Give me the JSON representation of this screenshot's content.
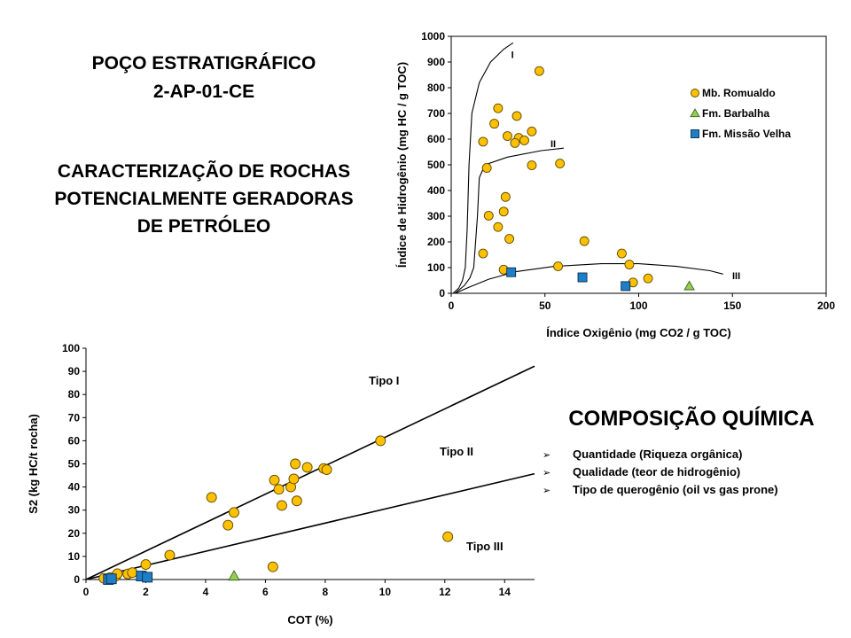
{
  "titles": {
    "well_line1": "POÇO ESTRATIGRÁFICO",
    "well_line2": "2-AP-01-CE",
    "charac_line1": "CARACTERIZAÇÃO DE ROCHAS",
    "charac_line2": "POTENCIALMENTE GERADORAS",
    "charac_line3": "DE PETRÓLEO",
    "composition": "COMPOSIÇÃO QUÍMICA"
  },
  "bullets": [
    "Quantidade (Riqueza orgânica)",
    "Qualidade (teor de hidrogênio)",
    "Tipo de querogênio (oil vs gas prone)"
  ],
  "bullet_symbol": "➢",
  "colors": {
    "mb_romualdo": "#FFC000",
    "fm_barbalha": "#92D050",
    "fm_missao_velha": "#1F7FC4",
    "marker_edge": "#5A4A00",
    "axis": "#000000"
  },
  "chart_data": [
    {
      "type": "scatter",
      "title": "",
      "xlabel": "Índice Oxigênio (mg CO2 / g TOC)",
      "ylabel": "Índice de Hidrogênio (mg HC / g TOC)",
      "xlim": [
        0,
        200
      ],
      "ylim": [
        0,
        1000
      ],
      "xticks": [
        0,
        50,
        100,
        150,
        200
      ],
      "yticks": [
        0,
        100,
        200,
        300,
        400,
        500,
        600,
        700,
        800,
        900,
        1000
      ],
      "grid": false,
      "legend_position": "top-right",
      "series": [
        {
          "name": "Mb. Romualdo",
          "marker": "circle",
          "points": [
            [
              47,
              865
            ],
            [
              25,
              720
            ],
            [
              35,
              690
            ],
            [
              23,
              660
            ],
            [
              43,
              630
            ],
            [
              30,
              612
            ],
            [
              36,
              605
            ],
            [
              39,
              595
            ],
            [
              17,
              590
            ],
            [
              34,
              585
            ],
            [
              43,
              498
            ],
            [
              58,
              505
            ],
            [
              19,
              488
            ],
            [
              29,
              375
            ],
            [
              28,
              318
            ],
            [
              20,
              302
            ],
            [
              25,
              258
            ],
            [
              31,
              212
            ],
            [
              71,
              203
            ],
            [
              91,
              155
            ],
            [
              17,
              155
            ],
            [
              95,
              112
            ],
            [
              57,
              105
            ],
            [
              28,
              92
            ],
            [
              105,
              58
            ],
            [
              97,
              42
            ]
          ]
        },
        {
          "name": "Fm. Barbalha",
          "marker": "triangle",
          "points": [
            [
              127,
              28
            ]
          ]
        },
        {
          "name": "Fm. Missão Velha",
          "marker": "square",
          "points": [
            [
              32,
              82
            ],
            [
              70,
              62
            ],
            [
              93,
              28
            ]
          ]
        }
      ],
      "curve_labels": [
        "I",
        "II",
        "III"
      ]
    },
    {
      "type": "scatter",
      "title": "",
      "xlabel": "COT (%)",
      "ylabel": "S2 (kg HC/t rocha)",
      "xlim": [
        0,
        15
      ],
      "ylim": [
        0,
        100
      ],
      "xticks": [
        0,
        2,
        4,
        6,
        8,
        10,
        12,
        14
      ],
      "yticks": [
        0,
        10,
        20,
        30,
        40,
        50,
        60,
        70,
        80,
        90,
        100
      ],
      "grid": false,
      "lines": [
        {
          "name": "Tipo I",
          "slope": 6.15
        },
        {
          "name": "Tipo II",
          "slope": 3.05
        }
      ],
      "region_labels": [
        "Tipo I",
        "Tipo II",
        "Tipo III"
      ],
      "series": [
        {
          "name": "Mb. Romualdo",
          "marker": "circle",
          "points": [
            [
              0.6,
              0.5
            ],
            [
              0.8,
              0.8
            ],
            [
              1.0,
              1.5
            ],
            [
              1.05,
              2.5
            ],
            [
              1.4,
              2.4
            ],
            [
              1.55,
              3.0
            ],
            [
              2.0,
              6.5
            ],
            [
              2.8,
              10.5
            ],
            [
              4.2,
              35.5
            ],
            [
              4.75,
              23.5
            ],
            [
              4.95,
              29.0
            ],
            [
              6.3,
              43.0
            ],
            [
              6.45,
              39.0
            ],
            [
              6.55,
              32.0
            ],
            [
              6.85,
              40.0
            ],
            [
              6.95,
              43.5
            ],
            [
              7.0,
              50.0
            ],
            [
              7.05,
              34.0
            ],
            [
              7.4,
              48.5
            ],
            [
              7.95,
              48.0
            ],
            [
              8.05,
              47.5
            ],
            [
              9.85,
              60.0
            ],
            [
              6.25,
              5.5
            ],
            [
              12.1,
              18.5
            ]
          ]
        },
        {
          "name": "Fm. Barbalha",
          "marker": "triangle",
          "points": [
            [
              4.95,
              1.5
            ]
          ]
        },
        {
          "name": "Fm. Missão Velha",
          "marker": "square",
          "points": [
            [
              0.75,
              0.0
            ],
            [
              0.85,
              0.3
            ],
            [
              1.85,
              1.5
            ],
            [
              2.05,
              1.0
            ]
          ]
        }
      ]
    }
  ]
}
